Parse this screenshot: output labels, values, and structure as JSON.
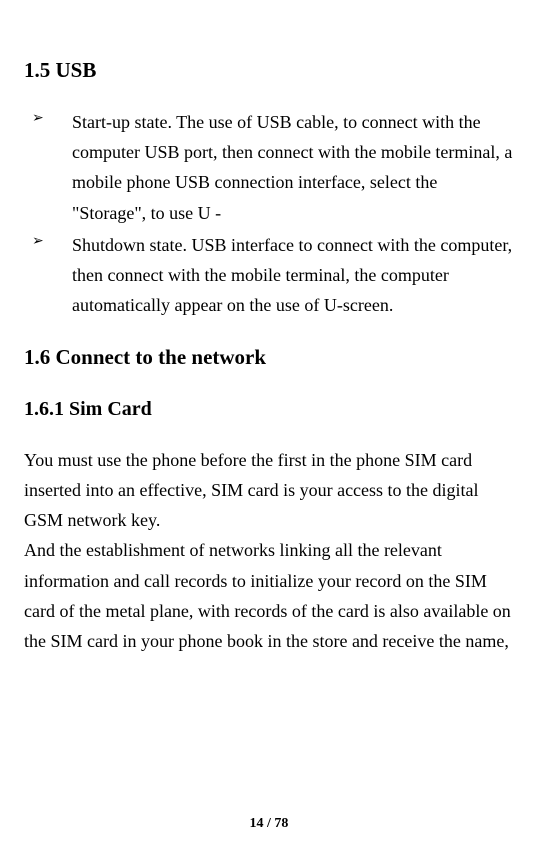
{
  "headings": {
    "h1": "1.5 USB",
    "h2": "1.6 Connect to the network",
    "h3": "1.6.1 Sim Card"
  },
  "bullets": [
    {
      "marker": "➢",
      "text": "Start-up state. The use of USB cable, to connect with the computer USB port, then connect with the mobile terminal, a mobile phone USB connection interface, select the \"Storage\", to use U -"
    },
    {
      "marker": "➢",
      "text": "Shutdown state. USB interface to connect with the computer, then connect with the mobile terminal, the computer automatically appear on the use of U-screen."
    }
  ],
  "paragraphs": {
    "p1": "You must use the phone before the first in the phone SIM card inserted into an effective, SIM card is your access to the digital GSM network key.",
    "p2": "And the establishment of networks linking all the relevant information and call records to initialize your record on the SIM card of the metal plane, with records of the card is also available on the SIM card in your phone book in the store and receive the name,"
  },
  "footer": {
    "page": "14 / 78"
  },
  "colors": {
    "background": "#ffffff",
    "text": "#000000"
  }
}
